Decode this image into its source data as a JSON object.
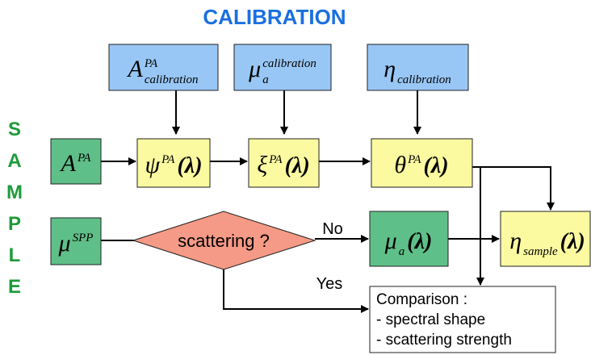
{
  "title": "CALIBRATION",
  "side_label": [
    "S",
    "A",
    "M",
    "P",
    "L",
    "E"
  ],
  "nodes": [
    {
      "base": "A",
      "sup": "PA",
      "sub": "calibration"
    },
    {
      "base": "μ",
      "sup": "calibration",
      "sub": "a"
    },
    {
      "base": "η",
      "sub": "calibration"
    },
    {
      "base": "A",
      "sup": "PA"
    },
    {
      "base": "ψ",
      "sup": "PA",
      "arg": "(λ)"
    },
    {
      "base": "ξ",
      "sup": "PA",
      "arg": "(λ)"
    },
    {
      "base": "θ",
      "sup": "PA",
      "arg": "(λ)"
    },
    {
      "base": "μ",
      "sup": "SPP"
    },
    {
      "base": "μ",
      "sub": "a",
      "arg": "(λ)"
    },
    {
      "base": "η",
      "sub": "sample",
      "arg": "(λ)"
    }
  ],
  "decision": {
    "label": "scattering ?"
  },
  "edges": {
    "no": "No",
    "yes": "Yes"
  },
  "comparison": {
    "lines": [
      "Comparison :",
      "- spectral shape",
      "- scattering strength"
    ]
  }
}
